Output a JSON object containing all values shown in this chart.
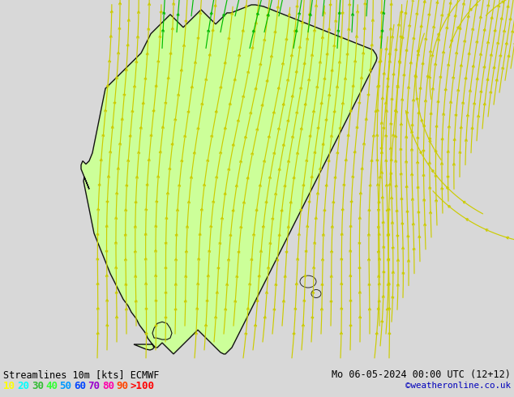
{
  "title_left": "Streamlines 10m [kts] ECMWF",
  "title_right": "Mo 06-05-2024 00:00 UTC (12+12)",
  "credit": "©weatheronline.co.uk",
  "legend_values": [
    "10",
    "20",
    "30",
    "40",
    "50",
    "60",
    "70",
    "80",
    "90",
    ">100"
  ],
  "legend_colors": [
    "#ffff00",
    "#00ffff",
    "#33bb33",
    "#33ff33",
    "#0099ff",
    "#0044ff",
    "#9900cc",
    "#ff00aa",
    "#ff4400",
    "#ff0000"
  ],
  "bg_color": "#d8d8d8",
  "land_color": "#ccff99",
  "border_color": "#111111",
  "fig_width": 6.34,
  "fig_height": 4.9,
  "dpi": 100,
  "bottom_bar_color": "#ffffff",
  "title_fontsize": 8.5,
  "legend_fontsize": 9,
  "credit_color": "#0000bb",
  "title_color": "#000000",
  "col_yellow": "#cccc00",
  "col_yellow2": "#dddd00",
  "col_green": "#00bb00",
  "col_lgreen": "#88cc00"
}
